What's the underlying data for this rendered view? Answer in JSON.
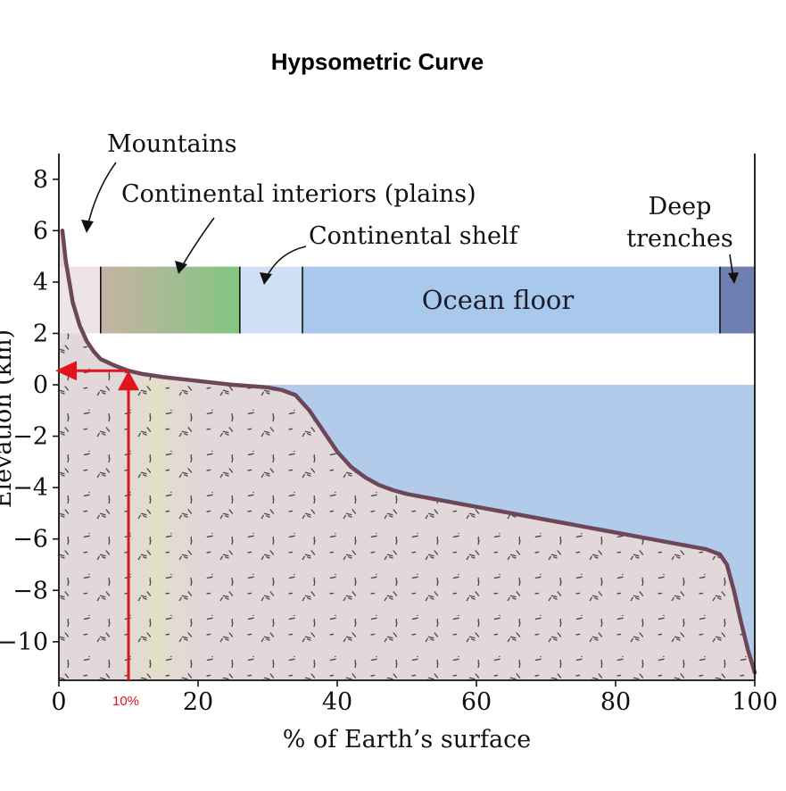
{
  "chart_data": {
    "type": "area",
    "title": "Hypsometric Curve",
    "xlabel": "% of Earth’s surface",
    "ylabel": "Elevation (km)",
    "xlim": [
      0,
      100
    ],
    "ylim": [
      -11.5,
      9
    ],
    "xticks": [
      0,
      20,
      40,
      60,
      80,
      100
    ],
    "yticks": [
      8,
      6,
      4,
      2,
      0,
      -2,
      -4,
      -6,
      -8,
      -10
    ],
    "grid": false,
    "series": [
      {
        "x": [
          0.5,
          1,
          2,
          3,
          4,
          5,
          6,
          8,
          10,
          12,
          15,
          20,
          25,
          30,
          32,
          34,
          36,
          38,
          40,
          42,
          44,
          46,
          48,
          50,
          55,
          60,
          65,
          70,
          75,
          80,
          85,
          90,
          93,
          95,
          96,
          97,
          98,
          99,
          100
        ],
        "y": [
          6.0,
          4.8,
          3.2,
          2.3,
          1.7,
          1.3,
          1.0,
          0.75,
          0.55,
          0.42,
          0.3,
          0.15,
          0.0,
          -0.1,
          -0.2,
          -0.4,
          -1.0,
          -1.8,
          -2.6,
          -3.2,
          -3.6,
          -3.9,
          -4.1,
          -4.25,
          -4.5,
          -4.75,
          -5.0,
          -5.25,
          -5.5,
          -5.75,
          -6.0,
          -6.25,
          -6.4,
          -6.6,
          -7.0,
          -8.0,
          -9.2,
          -10.3,
          -11.2
        ]
      }
    ],
    "annotations": [
      "Mountains",
      "Continental interiors (plains)",
      "Continental shelf",
      "Deep",
      "trenches"
    ],
    "bands": [
      {
        "label": "",
        "x": [
          0,
          6
        ],
        "color": "#ece4e6"
      },
      {
        "label": "",
        "x": [
          6,
          26
        ],
        "color_from": "#c7b2a4",
        "color_to": "#82c581"
      },
      {
        "label": "",
        "x": [
          26,
          35
        ],
        "color": "#cfe0f3"
      },
      {
        "label": "Ocean floor",
        "x": [
          35,
          95
        ],
        "color": "#a9c9ec"
      },
      {
        "label": "",
        "x": [
          95,
          100
        ],
        "color": "#6f7fb1"
      }
    ],
    "band_y": [
      2,
      4.6
    ],
    "marker": {
      "x": 10,
      "y": 0.55,
      "label": "10%",
      "color": "#e0141c"
    },
    "colors": {
      "curve": "#6e4659",
      "land": "#e2d7d9",
      "ocean": "#b2cbeb",
      "speckle": "#4a4a4a"
    }
  }
}
